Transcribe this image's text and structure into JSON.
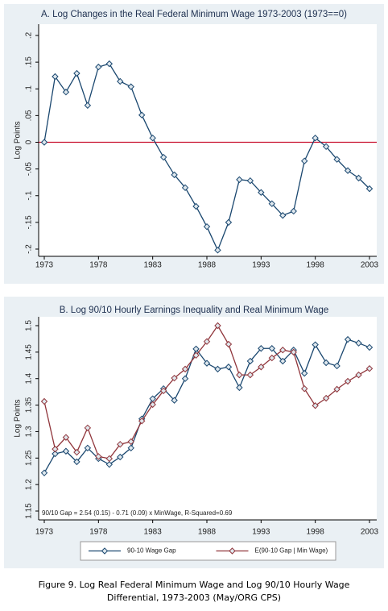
{
  "chart_data": [
    {
      "type": "line",
      "title": "A. Log Changes in the Real Federal Minimum Wage 1973-2003 (1973==0)",
      "y_label": "Log Points",
      "x": [
        1973,
        1974,
        1975,
        1976,
        1977,
        1978,
        1979,
        1980,
        1981,
        1982,
        1983,
        1984,
        1985,
        1986,
        1987,
        1988,
        1989,
        1990,
        1991,
        1992,
        1993,
        1994,
        1995,
        1996,
        1997,
        1998,
        1999,
        2000,
        2001,
        2002,
        2003
      ],
      "series": [
        {
          "name": null,
          "color": "#1a476f",
          "values": [
            0,
            0.123,
            0.094,
            0.129,
            0.069,
            0.141,
            0.147,
            0.114,
            0.104,
            0.051,
            0.008,
            -0.028,
            -0.061,
            -0.085,
            -0.12,
            -0.158,
            -0.202,
            -0.15,
            -0.07,
            -0.072,
            -0.094,
            -0.115,
            -0.137,
            -0.129,
            -0.035,
            0.008,
            -0.008,
            -0.032,
            -0.053,
            -0.067,
            -0.087
          ]
        }
      ],
      "xlim": [
        1973,
        2003
      ],
      "xticks": [
        1973,
        1978,
        1983,
        1988,
        1993,
        1998,
        2003
      ],
      "ylim": [
        -0.2,
        0.2
      ],
      "yticks": [
        {
          "value": 0.2,
          "label": ".2"
        },
        {
          "value": 0.15,
          "label": ".15"
        },
        {
          "value": 0.1,
          "label": ".1"
        },
        {
          "value": 0.05,
          "label": ".05"
        },
        0,
        {
          "value": -0.05,
          "label": "-.05"
        },
        {
          "value": -0.1,
          "label": "-.1"
        },
        {
          "value": -0.15,
          "label": "-.15"
        },
        {
          "value": -0.2,
          "label": "-.2"
        }
      ],
      "reference_line": {
        "value": 0,
        "color": "#c8102e"
      }
    },
    {
      "type": "line",
      "title": "B. Log 90/10 Hourly Earnings Inequality and Real Minimum Wage",
      "y_label": "Log Points",
      "x": [
        1973,
        1974,
        1975,
        1976,
        1977,
        1978,
        1979,
        1980,
        1981,
        1982,
        1983,
        1984,
        1985,
        1986,
        1987,
        1988,
        1989,
        1990,
        1991,
        1992,
        1993,
        1994,
        1995,
        1996,
        1997,
        1998,
        1999,
        2000,
        2001,
        2002,
        2003
      ],
      "series": [
        {
          "name": "90-10 Wage Gap",
          "color": "#1a476f",
          "values": [
            1.222,
            1.258,
            1.263,
            1.243,
            1.269,
            1.249,
            1.238,
            1.252,
            1.269,
            1.324,
            1.362,
            1.381,
            1.359,
            1.4,
            1.456,
            1.429,
            1.418,
            1.422,
            1.383,
            1.433,
            1.457,
            1.457,
            1.433,
            1.454,
            1.41,
            1.464,
            1.43,
            1.424,
            1.474,
            1.467,
            1.459
          ]
        },
        {
          "name": "E(90-10 Gap | Min Wage)",
          "color": "#90353b",
          "values": [
            1.357,
            1.267,
            1.289,
            1.261,
            1.307,
            1.253,
            1.249,
            1.276,
            1.281,
            1.32,
            1.351,
            1.377,
            1.401,
            1.418,
            1.444,
            1.47,
            1.5,
            1.465,
            1.407,
            1.407,
            1.422,
            1.439,
            1.454,
            1.45,
            1.381,
            1.349,
            1.363,
            1.38,
            1.395,
            1.407,
            1.419
          ]
        }
      ],
      "xlim": [
        1973,
        2003
      ],
      "xticks": [
        1973,
        1978,
        1983,
        1988,
        1993,
        1998,
        2003
      ],
      "ylim": [
        1.15,
        1.5
      ],
      "yticks": [
        1.5,
        1.45,
        1.4,
        1.35,
        1.3,
        1.25,
        1.2,
        1.15
      ],
      "annotation": "90/10 Gap = 2.54 (0.15) - 0.71 (0.09) x MinWage, R-Squared=0.69",
      "legend": "bottom"
    }
  ],
  "caption": [
    "Figure 9. Log Real Federal Minimum Wage and Log 90/10 Hourly Wage",
    "Differential, 1973-2003 (May/ORG CPS)"
  ]
}
